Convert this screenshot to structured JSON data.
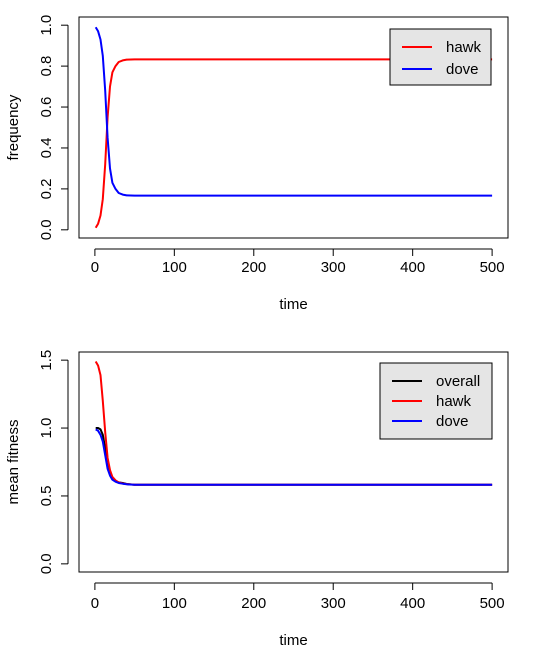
{
  "chart_data": [
    {
      "type": "line",
      "title": "",
      "xlabel": "time",
      "ylabel": "frequency",
      "xlim": [
        0,
        500
      ],
      "ylim": [
        0,
        1
      ],
      "xticks": [
        0,
        100,
        200,
        300,
        400,
        500
      ],
      "yticks": [
        0.0,
        0.2,
        0.4,
        0.6,
        0.8,
        1.0
      ],
      "ytick_labels": [
        "0.0",
        "0.2",
        "0.4",
        "0.6",
        "0.8",
        "1.0"
      ],
      "legend": "top-right",
      "grid": false,
      "series": [
        {
          "name": "hawk",
          "color": "#ff0000",
          "x": [
            1,
            4,
            7,
            10,
            13,
            16,
            19,
            22,
            26,
            30,
            35,
            40,
            50,
            60,
            80,
            100,
            200,
            300,
            400,
            500
          ],
          "values": [
            0.01,
            0.03,
            0.07,
            0.15,
            0.32,
            0.55,
            0.7,
            0.77,
            0.8,
            0.82,
            0.828,
            0.832,
            0.833,
            0.833,
            0.833,
            0.833,
            0.833,
            0.833,
            0.833,
            0.833
          ]
        },
        {
          "name": "dove",
          "color": "#0000ff",
          "x": [
            1,
            4,
            7,
            10,
            13,
            16,
            19,
            22,
            26,
            30,
            35,
            40,
            50,
            60,
            80,
            100,
            200,
            300,
            400,
            500
          ],
          "values": [
            0.99,
            0.97,
            0.93,
            0.85,
            0.68,
            0.45,
            0.3,
            0.23,
            0.2,
            0.18,
            0.172,
            0.168,
            0.167,
            0.167,
            0.167,
            0.167,
            0.167,
            0.167,
            0.167,
            0.167
          ]
        }
      ]
    },
    {
      "type": "line",
      "title": "",
      "xlabel": "time",
      "ylabel": "mean fitness",
      "xlim": [
        0,
        500
      ],
      "ylim": [
        0,
        1.5
      ],
      "xticks": [
        0,
        100,
        200,
        300,
        400,
        500
      ],
      "yticks": [
        0.0,
        0.5,
        1.0,
        1.5
      ],
      "ytick_labels": [
        "0.0",
        "0.5",
        "1.0",
        "1.5"
      ],
      "legend": "top-right",
      "grid": false,
      "series": [
        {
          "name": "overall",
          "color": "#000000",
          "x": [
            1,
            4,
            7,
            10,
            13,
            16,
            19,
            22,
            26,
            30,
            35,
            40,
            50,
            100,
            200,
            300,
            400,
            500
          ],
          "values": [
            1.0,
            1.0,
            0.99,
            0.95,
            0.85,
            0.74,
            0.67,
            0.63,
            0.61,
            0.6,
            0.595,
            0.588,
            0.583,
            0.583,
            0.583,
            0.583,
            0.583,
            0.583
          ]
        },
        {
          "name": "hawk",
          "color": "#ff0000",
          "x": [
            1,
            4,
            7,
            10,
            13,
            16,
            19,
            22,
            26,
            30,
            35,
            40,
            50,
            100,
            200,
            300,
            400,
            500
          ],
          "values": [
            1.49,
            1.46,
            1.39,
            1.2,
            0.97,
            0.78,
            0.69,
            0.64,
            0.615,
            0.6,
            0.592,
            0.587,
            0.583,
            0.583,
            0.583,
            0.583,
            0.583,
            0.583
          ]
        },
        {
          "name": "dove",
          "color": "#0000ff",
          "x": [
            1,
            4,
            7,
            10,
            13,
            16,
            19,
            22,
            26,
            30,
            35,
            40,
            50,
            100,
            200,
            300,
            400,
            500
          ],
          "values": [
            0.99,
            0.98,
            0.95,
            0.9,
            0.8,
            0.7,
            0.65,
            0.62,
            0.605,
            0.595,
            0.59,
            0.586,
            0.583,
            0.583,
            0.583,
            0.583,
            0.583,
            0.583
          ]
        }
      ]
    }
  ]
}
